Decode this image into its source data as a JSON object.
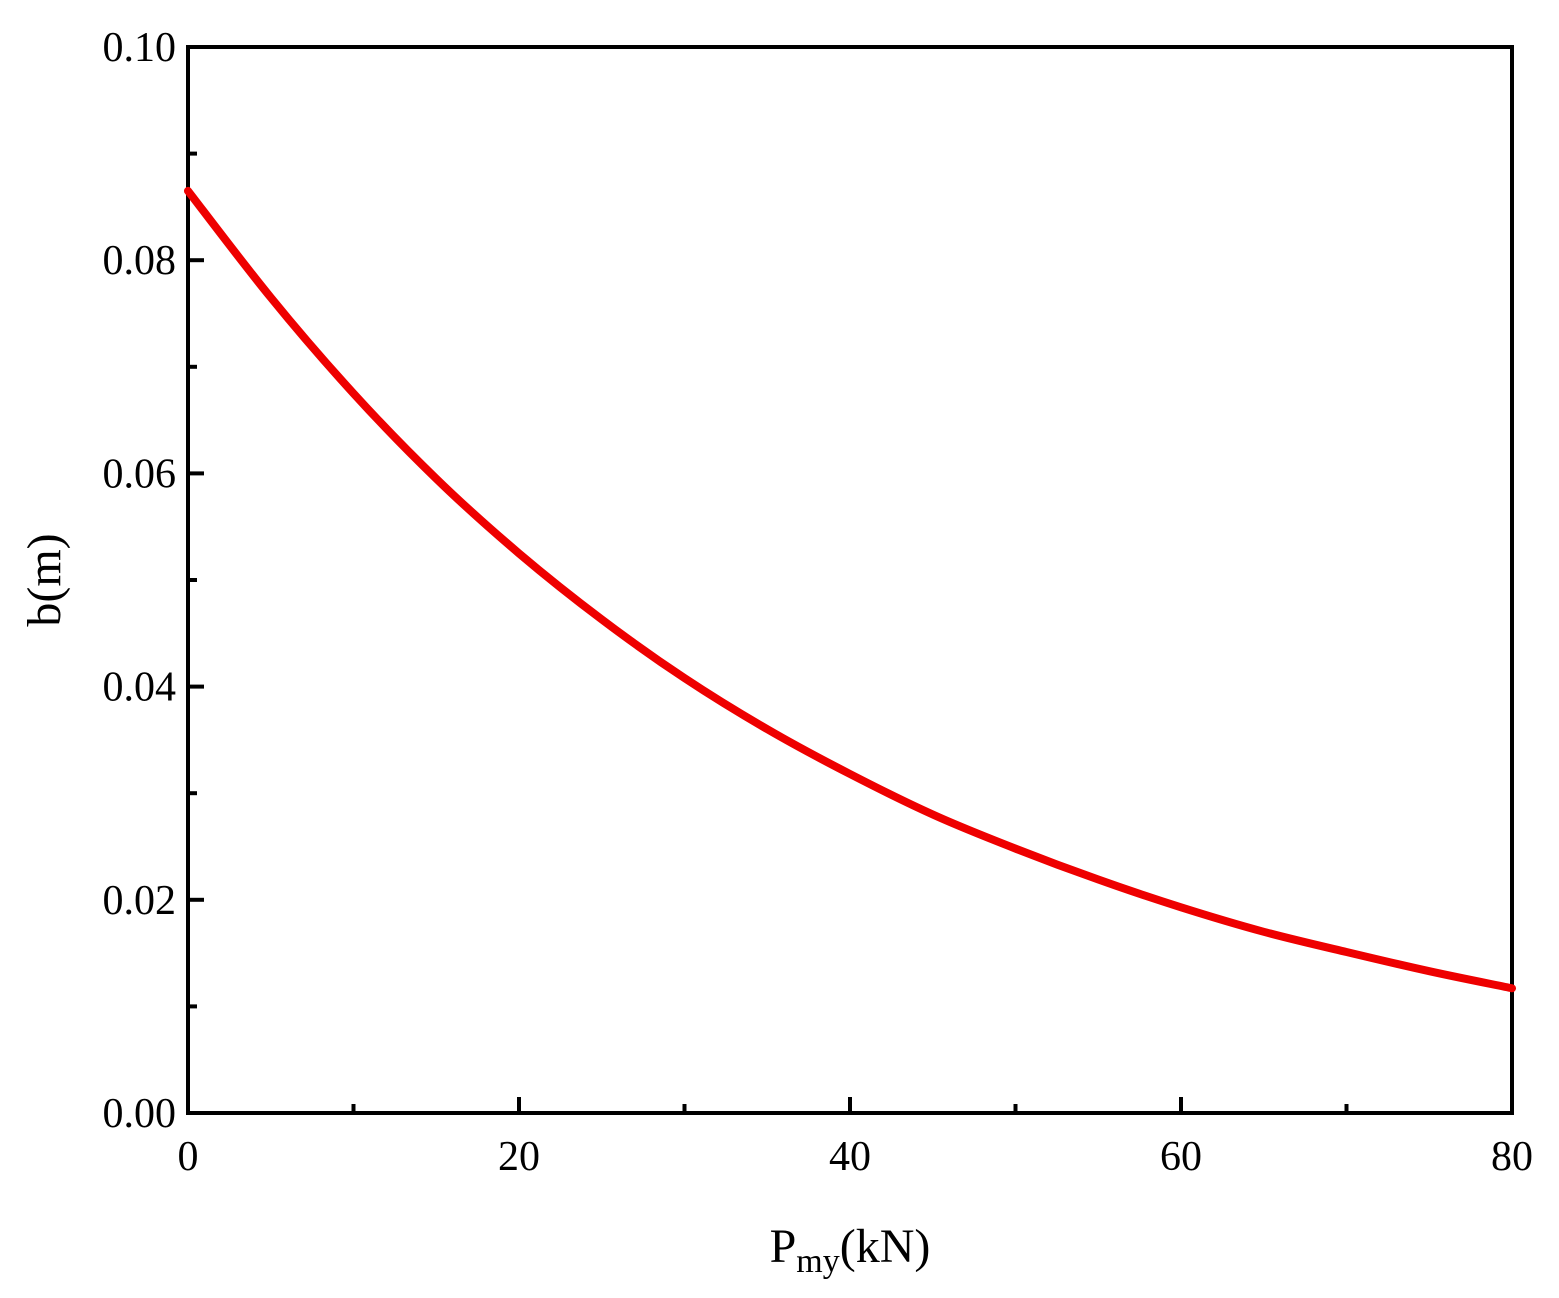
{
  "chart_data": {
    "type": "line",
    "xlabel": {
      "main": "P",
      "sub": "my",
      "unit": "(kN)"
    },
    "ylabel": "b(m)",
    "xlim": [
      0,
      80
    ],
    "ylim": [
      0,
      0.1
    ],
    "x_ticks": [
      0,
      20,
      40,
      60,
      80
    ],
    "x_tick_labels": [
      "0",
      "20",
      "40",
      "60",
      "80"
    ],
    "x_minor_ticks": [
      10,
      30,
      50,
      70
    ],
    "y_ticks": [
      0,
      0.02,
      0.04,
      0.06,
      0.08,
      0.1
    ],
    "y_tick_labels": [
      "0.00",
      "0.02",
      "0.04",
      "0.06",
      "0.08",
      "0.10"
    ],
    "y_minor_ticks": [
      0.01,
      0.03,
      0.05,
      0.07,
      0.09
    ],
    "grid": false,
    "legend": "none",
    "series": [
      {
        "color": "#ee0000",
        "x": [
          0,
          5,
          10,
          15,
          20,
          25,
          30,
          35,
          40,
          45,
          50,
          55,
          60,
          65,
          70,
          75,
          80
        ],
        "y": [
          0.0865,
          0.0765,
          0.0675,
          0.0595,
          0.0525,
          0.0463,
          0.0408,
          0.036,
          0.0318,
          0.028,
          0.0248,
          0.0219,
          0.0193,
          0.017,
          0.0151,
          0.0133,
          0.0117
        ]
      }
    ]
  }
}
